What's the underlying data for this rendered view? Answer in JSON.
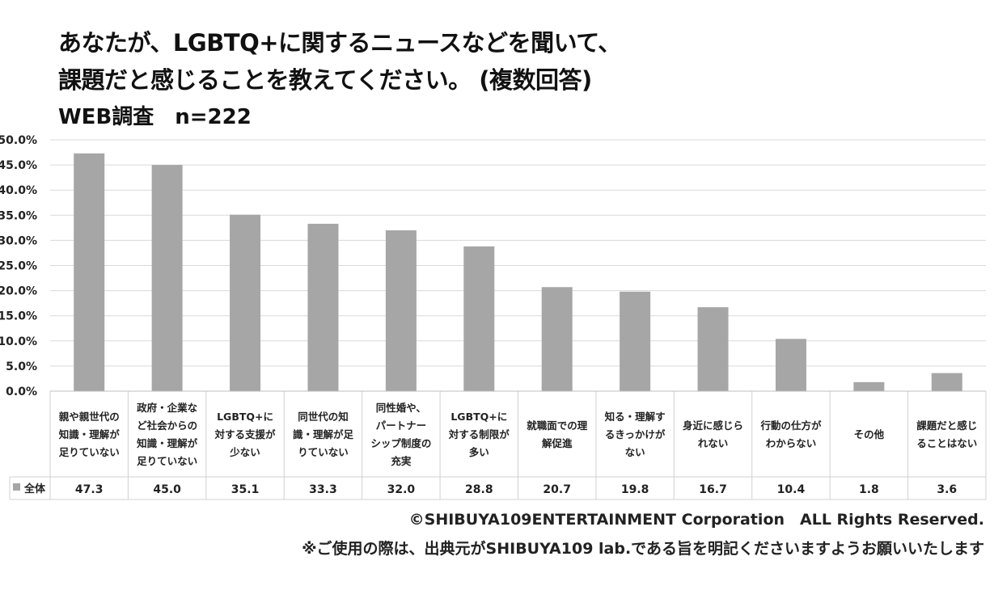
{
  "chart_data": {
    "type": "bar",
    "title_lines": [
      "あなたが、LGBTQ+に関するニュースなどを聞いて、",
      "課題だと感じることを教えてください。 (複数回答)"
    ],
    "subtitle": "WEB調査　n=222",
    "ylim": [
      0,
      50
    ],
    "yticks": [
      "0.0%",
      "5.0%",
      "10.0%",
      "15.0%",
      "20.0%",
      "25.0%",
      "30.0%",
      "35.0%",
      "40.0%",
      "45.0%",
      "50.0%"
    ],
    "grid": true,
    "categories": [
      [
        "親や親世代の",
        "知識・理解が",
        "足りていない"
      ],
      [
        "政府・企業な",
        "ど社会からの",
        "知識・理解が",
        "足りていない"
      ],
      [
        "LGBTQ+に",
        "対する支援が",
        "少ない"
      ],
      [
        "同世代の知",
        "識・理解が足",
        "りていない"
      ],
      [
        "同性婚や、",
        "パートナー",
        "シップ制度の",
        "充実"
      ],
      [
        "LGBTQ+に",
        "対する制限が",
        "多い"
      ],
      [
        "就職面での理",
        "解促進"
      ],
      [
        "知る・理解す",
        "るきっかけが",
        "ない"
      ],
      [
        "身近に感じら",
        "れない"
      ],
      [
        "行動の仕方が",
        "わからない"
      ],
      [
        "その他"
      ],
      [
        "課題だと感じ",
        "ることはない"
      ]
    ],
    "series": [
      {
        "name": "全体",
        "color": "#a6a6a6",
        "values": [
          47.3,
          45.0,
          35.1,
          33.3,
          32.0,
          28.8,
          20.7,
          19.8,
          16.7,
          10.4,
          1.8,
          3.6
        ],
        "value_labels": [
          "47.3",
          "45.0",
          "35.1",
          "33.3",
          "32.0",
          "28.8",
          "20.7",
          "19.8",
          "16.7",
          "10.4",
          "1.8",
          "3.6"
        ]
      }
    ]
  },
  "footer": {
    "copyright": "©SHIBUYA109ENTERTAINMENT Corporation　ALL Rights Reserved.",
    "note": "※ご使用の際は、出典元がSHIBUYA109 lab.である旨を明記くださいますようお願いいたします"
  }
}
